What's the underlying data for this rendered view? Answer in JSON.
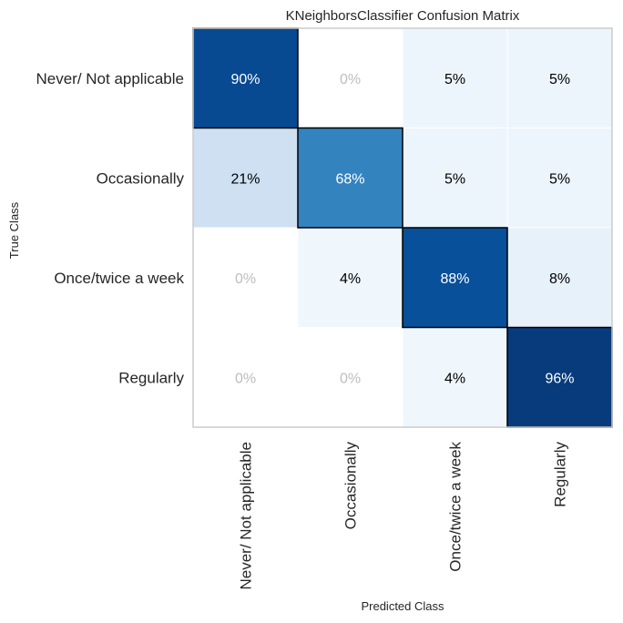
{
  "chart_data": {
    "type": "heatmap",
    "title": "KNeighborsClassifier Confusion Matrix",
    "xlabel": "Predicted Class",
    "ylabel": "True Class",
    "rows": [
      "Never/ Not applicable",
      "Occasionally",
      "Once/twice a week",
      "Regularly"
    ],
    "columns": [
      "Never/ Not applicable",
      "Occasionally",
      "Once/twice a week",
      "Regularly"
    ],
    "values": [
      [
        90,
        0,
        5,
        5
      ],
      [
        21,
        68,
        5,
        5
      ],
      [
        0,
        4,
        88,
        8
      ],
      [
        0,
        0,
        4,
        96
      ]
    ],
    "value_labels": [
      [
        "90%",
        "0%",
        "5%",
        "5%"
      ],
      [
        "21%",
        "68%",
        "5%",
        "5%"
      ],
      [
        "0%",
        "4%",
        "88%",
        "8%"
      ],
      [
        "0%",
        "0%",
        "4%",
        "96%"
      ]
    ],
    "value_unit": "%",
    "colormap": "Blues",
    "diagonal_outlined": true,
    "colors": {
      "zero_text": "#bdbdbd",
      "dark_text": "#000000",
      "light_text": "#ffffff",
      "diagonal_outline": "#000000",
      "frame": "#cccccc"
    }
  }
}
